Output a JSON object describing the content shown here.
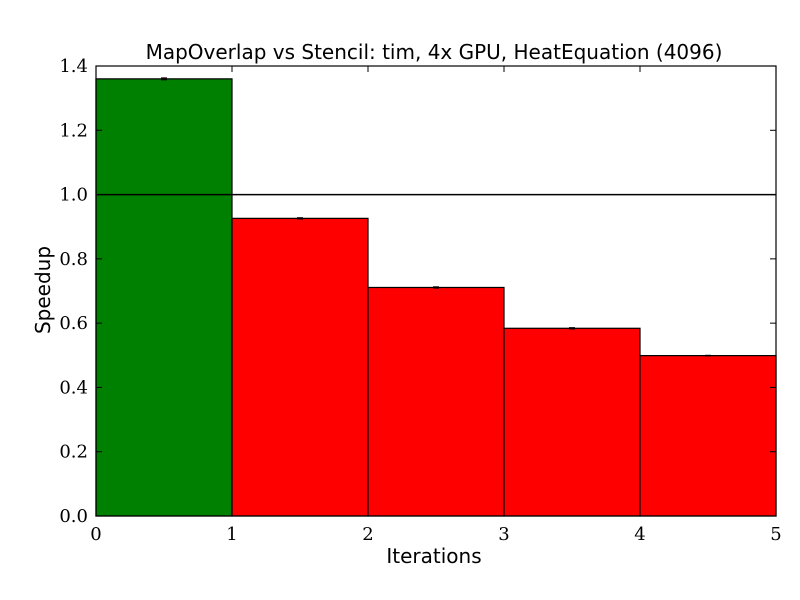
{
  "chart_data": {
    "type": "bar",
    "title": "MapOverlap vs Stencil: tim, 4x GPU, HeatEquation (4096)",
    "xlabel": "Iterations",
    "ylabel": "Speedup",
    "xlim": [
      0,
      5
    ],
    "ylim": [
      0,
      1.4
    ],
    "xticks": [
      "0",
      "1",
      "2",
      "3",
      "4",
      "5"
    ],
    "yticks": [
      "0.0",
      "0.2",
      "0.4",
      "0.6",
      "0.8",
      "1.0",
      "1.2",
      "1.4"
    ],
    "reference_line": 1.0,
    "bars": [
      {
        "x0": 0,
        "x1": 1,
        "value": 1.36,
        "error": 0.003,
        "color": "#008000"
      },
      {
        "x0": 1,
        "x1": 2,
        "value": 0.926,
        "error": 0.002,
        "color": "#ff0000"
      },
      {
        "x0": 2,
        "x1": 3,
        "value": 0.711,
        "error": 0.002,
        "color": "#ff0000"
      },
      {
        "x0": 3,
        "x1": 4,
        "value": 0.584,
        "error": 0.002,
        "color": "#ff0000"
      },
      {
        "x0": 4,
        "x1": 5,
        "value": 0.499,
        "error": 0.001,
        "color": "#ff0000"
      }
    ],
    "grid": false,
    "legend": "none"
  }
}
